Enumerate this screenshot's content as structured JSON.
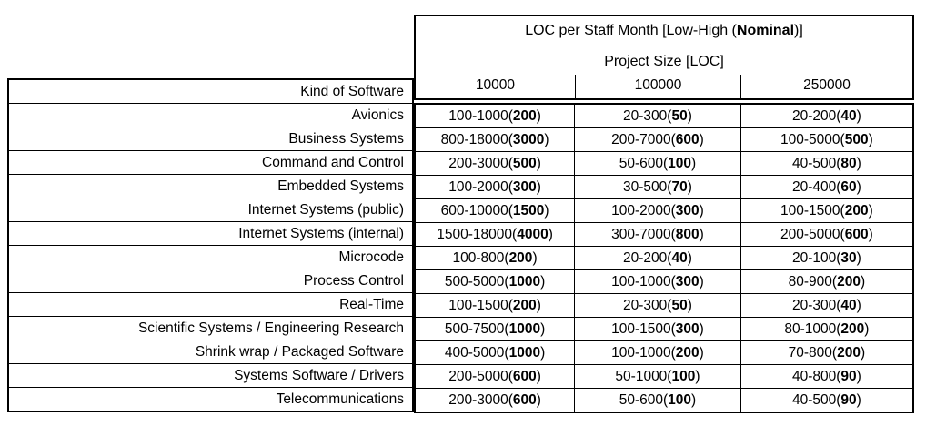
{
  "page": {
    "background": "#ffffff",
    "border_color": "#000000",
    "text_color": "#000000"
  },
  "table": {
    "title_prefix": "LOC per Staff Month [Low-High (",
    "title_bold": "Nominal",
    "title_suffix": ")]",
    "subtitle": "Project Size [LOC]",
    "row_header": "Kind of Software",
    "size_columns": [
      "10000",
      "100000",
      "250000"
    ],
    "rows": [
      {
        "label": "Avionics",
        "cells": [
          {
            "range": "100-1000",
            "nominal": "200"
          },
          {
            "range": "20-300",
            "nominal": "50"
          },
          {
            "range": "20-200",
            "nominal": "40"
          }
        ]
      },
      {
        "label": "Business Systems",
        "cells": [
          {
            "range": "800-18000",
            "nominal": "3000"
          },
          {
            "range": "200-7000",
            "nominal": "600"
          },
          {
            "range": "100-5000",
            "nominal": "500"
          }
        ]
      },
      {
        "label": "Command and Control",
        "cells": [
          {
            "range": "200-3000",
            "nominal": "500"
          },
          {
            "range": "50-600",
            "nominal": "100"
          },
          {
            "range": "40-500",
            "nominal": "80"
          }
        ]
      },
      {
        "label": "Embedded Systems",
        "cells": [
          {
            "range": "100-2000",
            "nominal": "300"
          },
          {
            "range": "30-500",
            "nominal": "70"
          },
          {
            "range": "20-400",
            "nominal": "60"
          }
        ]
      },
      {
        "label": "Internet Systems (public)",
        "cells": [
          {
            "range": "600-10000",
            "nominal": "1500"
          },
          {
            "range": "100-2000",
            "nominal": "300"
          },
          {
            "range": "100-1500",
            "nominal": "200"
          }
        ]
      },
      {
        "label": "Internet Systems (internal)",
        "cells": [
          {
            "range": "1500-18000",
            "nominal": "4000"
          },
          {
            "range": "300-7000",
            "nominal": "800"
          },
          {
            "range": "200-5000",
            "nominal": "600"
          }
        ]
      },
      {
        "label": "Microcode",
        "cells": [
          {
            "range": "100-800",
            "nominal": "200"
          },
          {
            "range": "20-200",
            "nominal": "40"
          },
          {
            "range": "20-100",
            "nominal": "30"
          }
        ]
      },
      {
        "label": "Process Control",
        "cells": [
          {
            "range": "500-5000",
            "nominal": "1000"
          },
          {
            "range": "100-1000",
            "nominal": "300"
          },
          {
            "range": "80-900",
            "nominal": "200"
          }
        ]
      },
      {
        "label": "Real-Time",
        "cells": [
          {
            "range": "100-1500",
            "nominal": "200"
          },
          {
            "range": "20-300",
            "nominal": "50"
          },
          {
            "range": "20-300",
            "nominal": "40"
          }
        ]
      },
      {
        "label": "Scientific Systems / Engineering Research",
        "cells": [
          {
            "range": "500-7500",
            "nominal": "1000"
          },
          {
            "range": "100-1500",
            "nominal": "300"
          },
          {
            "range": "80-1000",
            "nominal": "200"
          }
        ]
      },
      {
        "label": "Shrink wrap / Packaged Software",
        "cells": [
          {
            "range": "400-5000",
            "nominal": "1000"
          },
          {
            "range": "100-1000",
            "nominal": "200"
          },
          {
            "range": "70-800",
            "nominal": "200"
          }
        ]
      },
      {
        "label": "Systems Software / Drivers",
        "cells": [
          {
            "range": "200-5000",
            "nominal": "600"
          },
          {
            "range": "50-1000",
            "nominal": "100"
          },
          {
            "range": "40-800",
            "nominal": "90"
          }
        ]
      },
      {
        "label": "Telecommunications",
        "cells": [
          {
            "range": "200-3000",
            "nominal": "600"
          },
          {
            "range": "50-600",
            "nominal": "100"
          },
          {
            "range": "40-500",
            "nominal": "90"
          }
        ]
      }
    ]
  },
  "chart_data": {
    "type": "table",
    "title": "LOC per Staff Month [Low-High (Nominal)]",
    "subtitle": "Project Size [LOC]",
    "columns": [
      "Kind of Software",
      "10000",
      "100000",
      "250000"
    ],
    "rows": [
      [
        "Avionics",
        "100-1000(200)",
        "20-300(50)",
        "20-200(40)"
      ],
      [
        "Business Systems",
        "800-18000(3000)",
        "200-7000(600)",
        "100-5000(500)"
      ],
      [
        "Command and Control",
        "200-3000(500)",
        "50-600(100)",
        "40-500(80)"
      ],
      [
        "Embedded Systems",
        "100-2000(300)",
        "30-500(70)",
        "20-400(60)"
      ],
      [
        "Internet Systems (public)",
        "600-10000(1500)",
        "100-2000(300)",
        "100-1500(200)"
      ],
      [
        "Internet Systems (internal)",
        "1500-18000(4000)",
        "300-7000(800)",
        "200-5000(600)"
      ],
      [
        "Microcode",
        "100-800(200)",
        "20-200(40)",
        "20-100(30)"
      ],
      [
        "Process Control",
        "500-5000(1000)",
        "100-1000(300)",
        "80-900(200)"
      ],
      [
        "Real-Time",
        "100-1500(200)",
        "20-300(50)",
        "20-300(40)"
      ],
      [
        "Scientific Systems / Engineering Research",
        "500-7500(1000)",
        "100-1500(300)",
        "80-1000(200)"
      ],
      [
        "Shrink wrap / Packaged Software",
        "400-5000(1000)",
        "100-1000(200)",
        "70-800(200)"
      ],
      [
        "Systems Software / Drivers",
        "200-5000(600)",
        "50-1000(100)",
        "40-800(90)"
      ],
      [
        "Telecommunications",
        "200-3000(600)",
        "50-600(100)",
        "40-500(90)"
      ]
    ]
  }
}
